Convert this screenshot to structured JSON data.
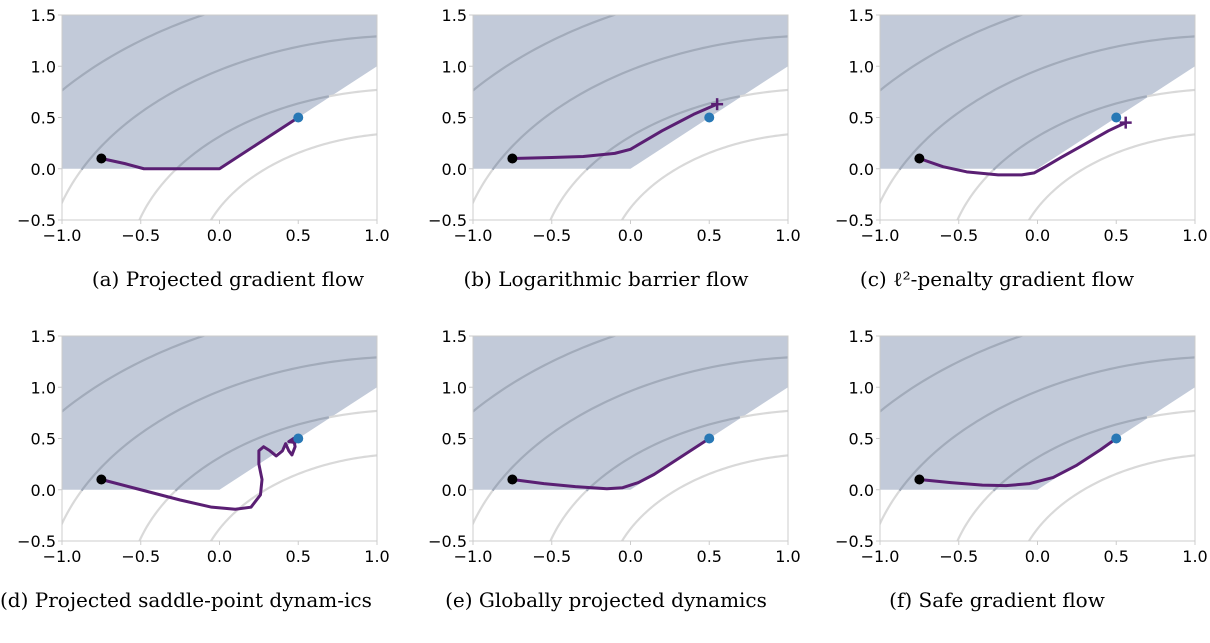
{
  "colors": {
    "feasible_region": "#c2cad9",
    "contour_inside": "#a2abba",
    "contour_outside": "#d9d9d9",
    "trajectory": "#5a1f73",
    "start_point": "#000000",
    "optimum_point": "#2878b5"
  },
  "captions": [
    "(a) Projected gradient flow",
    "(b) Logarithmic barrier flow",
    "(c) ℓ²-penalty gradient flow",
    "(d) Projected saddle-point dynam-ics",
    "(e) Globally projected dynamics",
    "(f) Safe gradient flow"
  ],
  "chart_data": [
    {
      "type": "line",
      "title": "(a) Projected gradient flow",
      "xlim": [
        -1.0,
        1.0
      ],
      "ylim": [
        -0.5,
        1.5
      ],
      "xticks": [
        "−1.0",
        "−0.5",
        "0.0",
        "0.5",
        "1.0"
      ],
      "yticks": [
        "−0.5",
        "0.0",
        "0.5",
        "1.0",
        "1.5"
      ],
      "start": [
        -0.75,
        0.1
      ],
      "optimum": [
        0.5,
        0.5
      ],
      "end_marker": "none",
      "trajectory": [
        [
          -0.75,
          0.1
        ],
        [
          -0.6,
          0.05
        ],
        [
          -0.48,
          0.0
        ],
        [
          -0.3,
          0.0
        ],
        [
          0.0,
          0.0
        ],
        [
          0.25,
          0.25
        ],
        [
          0.5,
          0.5
        ]
      ]
    },
    {
      "type": "line",
      "title": "(b) Logarithmic barrier flow",
      "xlim": [
        -1.0,
        1.0
      ],
      "ylim": [
        -0.5,
        1.5
      ],
      "xticks": [
        "−1.0",
        "−0.5",
        "0.0",
        "0.5",
        "1.0"
      ],
      "yticks": [
        "−0.5",
        "0.0",
        "0.5",
        "1.0",
        "1.5"
      ],
      "start": [
        -0.75,
        0.1
      ],
      "optimum": [
        0.5,
        0.5
      ],
      "end_marker": "plus",
      "end": [
        0.55,
        0.63
      ],
      "trajectory": [
        [
          -0.75,
          0.1
        ],
        [
          -0.5,
          0.11
        ],
        [
          -0.3,
          0.12
        ],
        [
          -0.1,
          0.15
        ],
        [
          0.0,
          0.19
        ],
        [
          0.1,
          0.28
        ],
        [
          0.2,
          0.37
        ],
        [
          0.3,
          0.45
        ],
        [
          0.4,
          0.53
        ],
        [
          0.55,
          0.63
        ]
      ]
    },
    {
      "type": "line",
      "title": "(c) ℓ²-penalty gradient flow",
      "xlim": [
        -1.0,
        1.0
      ],
      "ylim": [
        -0.5,
        1.5
      ],
      "xticks": [
        "−1.0",
        "−0.5",
        "0.0",
        "0.5",
        "1.0"
      ],
      "yticks": [
        "−0.5",
        "0.0",
        "0.5",
        "1.0",
        "1.5"
      ],
      "start": [
        -0.75,
        0.1
      ],
      "optimum": [
        0.5,
        0.5
      ],
      "end_marker": "plus",
      "end": [
        0.56,
        0.45
      ],
      "trajectory": [
        [
          -0.75,
          0.1
        ],
        [
          -0.6,
          0.02
        ],
        [
          -0.45,
          -0.03
        ],
        [
          -0.25,
          -0.06
        ],
        [
          -0.1,
          -0.06
        ],
        [
          -0.02,
          -0.04
        ],
        [
          0.05,
          0.02
        ],
        [
          0.15,
          0.11
        ],
        [
          0.3,
          0.24
        ],
        [
          0.45,
          0.37
        ],
        [
          0.56,
          0.45
        ]
      ]
    },
    {
      "type": "line",
      "title": "(d) Projected saddle-point dynam-ics",
      "xlim": [
        -1.0,
        1.0
      ],
      "ylim": [
        -0.5,
        1.5
      ],
      "xticks": [
        "−1.0",
        "−0.5",
        "0.0",
        "0.5",
        "1.0"
      ],
      "yticks": [
        "−0.5",
        "0.0",
        "0.5",
        "1.0",
        "1.5"
      ],
      "start": [
        -0.75,
        0.1
      ],
      "optimum": [
        0.5,
        0.5
      ],
      "end_marker": "none",
      "trajectory": [
        [
          -0.75,
          0.1
        ],
        [
          -0.5,
          0.0
        ],
        [
          -0.25,
          -0.1
        ],
        [
          -0.05,
          -0.17
        ],
        [
          0.1,
          -0.19
        ],
        [
          0.2,
          -0.17
        ],
        [
          0.26,
          -0.05
        ],
        [
          0.27,
          0.1
        ],
        [
          0.25,
          0.25
        ],
        [
          0.25,
          0.38
        ],
        [
          0.28,
          0.42
        ],
        [
          0.32,
          0.38
        ],
        [
          0.36,
          0.33
        ],
        [
          0.4,
          0.38
        ],
        [
          0.42,
          0.45
        ],
        [
          0.44,
          0.38
        ],
        [
          0.46,
          0.34
        ],
        [
          0.48,
          0.42
        ],
        [
          0.47,
          0.5
        ],
        [
          0.44,
          0.47
        ],
        [
          0.48,
          0.46
        ],
        [
          0.5,
          0.5
        ]
      ]
    },
    {
      "type": "line",
      "title": "(e) Globally projected dynamics",
      "xlim": [
        -1.0,
        1.0
      ],
      "ylim": [
        -0.5,
        1.5
      ],
      "xticks": [
        "−1.0",
        "−0.5",
        "0.0",
        "0.5",
        "1.0"
      ],
      "yticks": [
        "−0.5",
        "0.0",
        "0.5",
        "1.0",
        "1.5"
      ],
      "start": [
        -0.75,
        0.1
      ],
      "optimum": [
        0.5,
        0.5
      ],
      "end_marker": "none",
      "trajectory": [
        [
          -0.75,
          0.1
        ],
        [
          -0.55,
          0.06
        ],
        [
          -0.35,
          0.03
        ],
        [
          -0.15,
          0.01
        ],
        [
          -0.05,
          0.02
        ],
        [
          0.05,
          0.07
        ],
        [
          0.15,
          0.15
        ],
        [
          0.3,
          0.3
        ],
        [
          0.5,
          0.5
        ]
      ]
    },
    {
      "type": "line",
      "title": "(f) Safe gradient flow",
      "xlim": [
        -1.0,
        1.0
      ],
      "ylim": [
        -0.5,
        1.5
      ],
      "xticks": [
        "−1.0",
        "−0.5",
        "0.0",
        "0.5",
        "1.0"
      ],
      "yticks": [
        "−0.5",
        "0.0",
        "0.5",
        "1.0",
        "1.5"
      ],
      "start": [
        -0.75,
        0.1
      ],
      "optimum": [
        0.5,
        0.5
      ],
      "end_marker": "none",
      "trajectory": [
        [
          -0.75,
          0.1
        ],
        [
          -0.55,
          0.07
        ],
        [
          -0.35,
          0.045
        ],
        [
          -0.2,
          0.04
        ],
        [
          -0.05,
          0.06
        ],
        [
          0.1,
          0.12
        ],
        [
          0.25,
          0.24
        ],
        [
          0.4,
          0.39
        ],
        [
          0.5,
          0.5
        ]
      ]
    }
  ]
}
